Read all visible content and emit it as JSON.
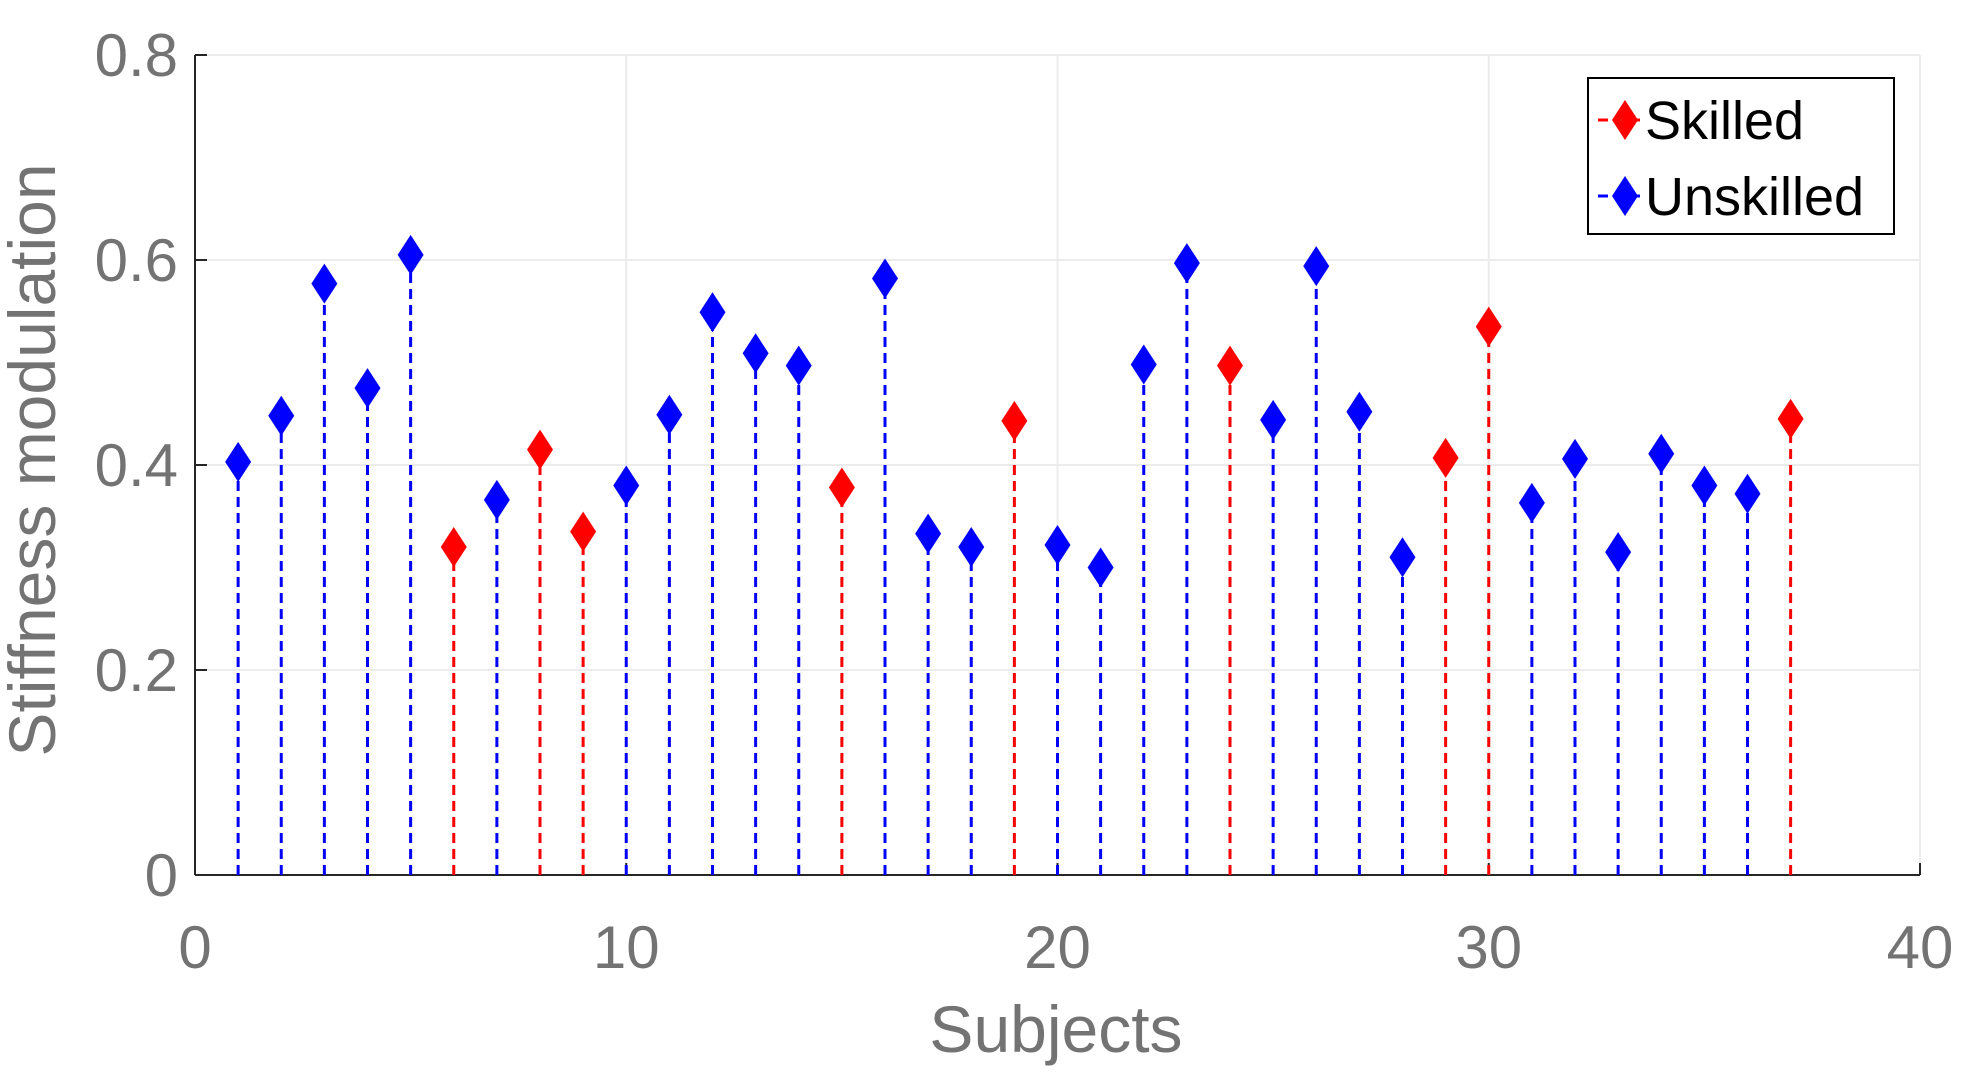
{
  "chart_data": {
    "type": "stem",
    "xlabel": "Subjects",
    "ylabel": "Stiffness modulation",
    "xlim": [
      0,
      40
    ],
    "ylim": [
      0,
      0.8
    ],
    "xticks": [
      0,
      10,
      20,
      30,
      40
    ],
    "yticks": [
      0,
      0.2,
      0.4,
      0.6,
      0.8
    ],
    "xtick_labels": [
      "0",
      "10",
      "20",
      "30",
      "40"
    ],
    "ytick_labels": [
      "0",
      "0.2",
      "0.4",
      "0.6",
      "0.8"
    ],
    "grid": true,
    "legend_position": "top-right",
    "marker": "diamond",
    "line_style": "dashed",
    "series": [
      {
        "name": "Skilled",
        "color": "#ff0000",
        "x": [
          6,
          8,
          9,
          15,
          19,
          24,
          29,
          30,
          37
        ],
        "y": [
          0.32,
          0.415,
          0.335,
          0.378,
          0.443,
          0.497,
          0.407,
          0.535,
          0.445
        ]
      },
      {
        "name": "Unskilled",
        "color": "#0000ff",
        "x": [
          1,
          2,
          3,
          4,
          5,
          7,
          10,
          11,
          12,
          13,
          14,
          16,
          17,
          18,
          20,
          21,
          22,
          23,
          25,
          26,
          27,
          28,
          31,
          32,
          33,
          34,
          35,
          36
        ],
        "y": [
          0.403,
          0.448,
          0.577,
          0.475,
          0.605,
          0.366,
          0.38,
          0.449,
          0.549,
          0.509,
          0.497,
          0.582,
          0.333,
          0.32,
          0.322,
          0.3,
          0.498,
          0.597,
          0.444,
          0.594,
          0.452,
          0.31,
          0.363,
          0.406,
          0.315,
          0.411,
          0.38,
          0.372
        ]
      }
    ]
  }
}
